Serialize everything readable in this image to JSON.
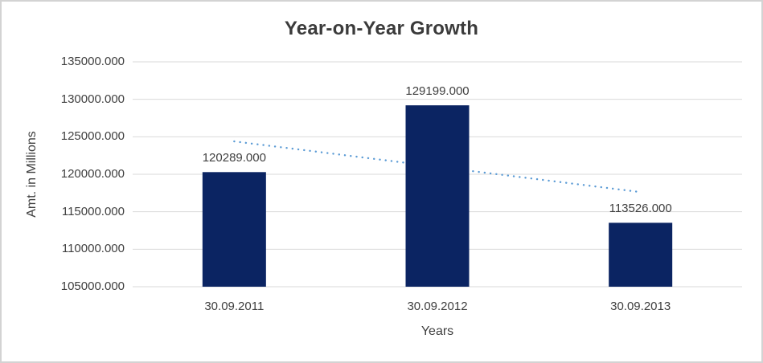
{
  "chart_data": {
    "type": "bar",
    "title": "Year-on-Year Growth",
    "xlabel": "Years",
    "ylabel": "Amt. in Millions",
    "categories": [
      "30.09.2011",
      "30.09.2012",
      "30.09.2013"
    ],
    "values": [
      120289,
      129199,
      113526
    ],
    "data_labels": [
      "120289.000",
      "129199.000",
      "113526.000"
    ],
    "ylim": [
      105000,
      135000
    ],
    "y_tick_step": 5000,
    "y_tick_labels": [
      "135000.000",
      "130000.000",
      "125000.000",
      "120000.000",
      "115000.000",
      "110000.000",
      "105000.000"
    ],
    "grid": true,
    "legend": "none",
    "trendline": {
      "type": "linear",
      "style": "dotted"
    },
    "colors": {
      "bar": "#0B2462",
      "gridline": "#D9D9D9",
      "trendline": "#5B9BD5",
      "text": "#404040",
      "title": "#3B3B3B",
      "frame_border": "#D3D3D3",
      "background": "#FFFFFF"
    }
  }
}
